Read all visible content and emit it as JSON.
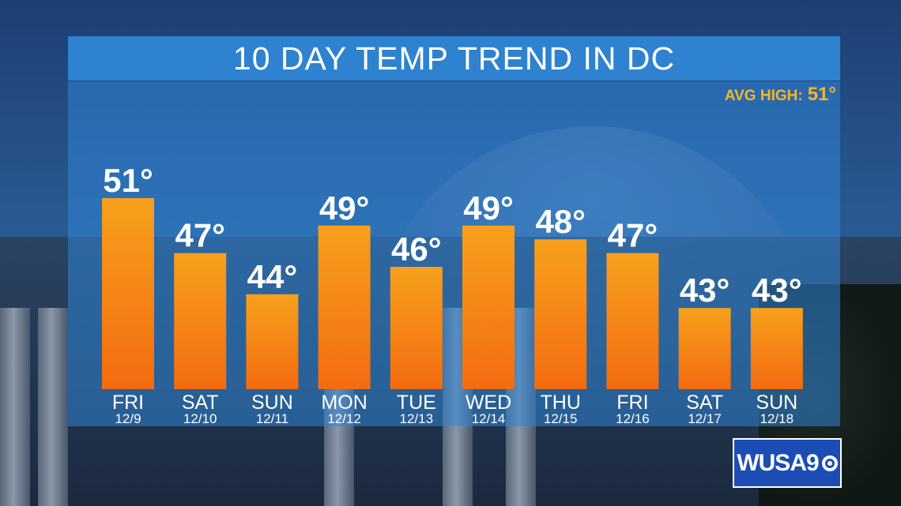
{
  "header": {
    "title": "10 DAY TEMP TREND IN DC"
  },
  "avg_high": {
    "label": "AVG HIGH:",
    "value": "51°"
  },
  "logo": {
    "text": "WUSA9",
    "icon": "cbs-eye-icon"
  },
  "colors": {
    "bar_top": "#f7a01c",
    "bar_bottom": "#f36b10",
    "panel": "#2f85d6",
    "accent": "#f5b52a"
  },
  "chart_data": {
    "type": "bar",
    "title": "10 DAY TEMP TREND IN DC",
    "categories": [
      "FRI",
      "SAT",
      "SUN",
      "MON",
      "TUE",
      "WED",
      "THU",
      "FRI",
      "SAT",
      "SUN"
    ],
    "dates": [
      "12/9",
      "12/10",
      "12/11",
      "12/12",
      "12/13",
      "12/14",
      "12/15",
      "12/16",
      "12/17",
      "12/18"
    ],
    "values": [
      51,
      47,
      44,
      49,
      46,
      49,
      48,
      47,
      43,
      43
    ],
    "value_labels": [
      "51°",
      "47°",
      "44°",
      "49°",
      "46°",
      "49°",
      "48°",
      "47°",
      "43°",
      "43°"
    ],
    "unit": "°",
    "grid": false
  }
}
